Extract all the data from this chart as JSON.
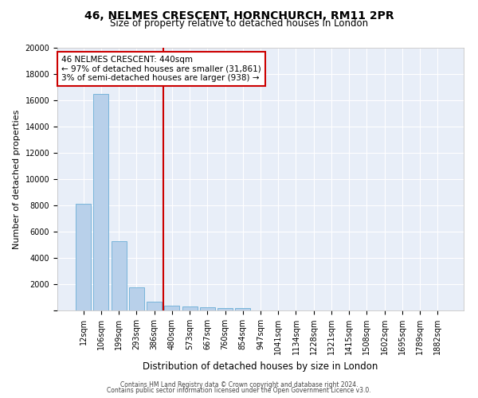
{
  "title1": "46, NELMES CRESCENT, HORNCHURCH, RM11 2PR",
  "title2": "Size of property relative to detached houses in London",
  "xlabel": "Distribution of detached houses by size in London",
  "ylabel": "Number of detached properties",
  "bar_color": "#b8d0ea",
  "bar_edge_color": "#6aaed6",
  "background_color": "#e8eef8",
  "grid_color": "#ffffff",
  "categories": [
    "12sqm",
    "106sqm",
    "199sqm",
    "293sqm",
    "386sqm",
    "480sqm",
    "573sqm",
    "667sqm",
    "760sqm",
    "854sqm",
    "947sqm",
    "1041sqm",
    "1134sqm",
    "1228sqm",
    "1321sqm",
    "1415sqm",
    "1508sqm",
    "1602sqm",
    "1695sqm",
    "1789sqm",
    "1882sqm"
  ],
  "values": [
    8100,
    16500,
    5300,
    1750,
    680,
    350,
    280,
    220,
    190,
    160,
    0,
    0,
    0,
    0,
    0,
    0,
    0,
    0,
    0,
    0,
    0
  ],
  "vline_pos": 4.5,
  "vline_color": "#cc0000",
  "annotation_text": "46 NELMES CRESCENT: 440sqm\n← 97% of detached houses are smaller (31,861)\n3% of semi-detached houses are larger (938) →",
  "annotation_box_color": "#cc0000",
  "annotation_text_size": 7.5,
  "ylim": [
    0,
    20000
  ],
  "yticks": [
    0,
    2000,
    4000,
    6000,
    8000,
    10000,
    12000,
    14000,
    16000,
    18000,
    20000
  ],
  "footnote1": "Contains HM Land Registry data © Crown copyright and database right 2024.",
  "footnote2": "Contains public sector information licensed under the Open Government Licence v3.0.",
  "title1_size": 10,
  "title2_size": 8.5,
  "ylabel_size": 8,
  "xlabel_size": 8.5,
  "tick_size": 7
}
